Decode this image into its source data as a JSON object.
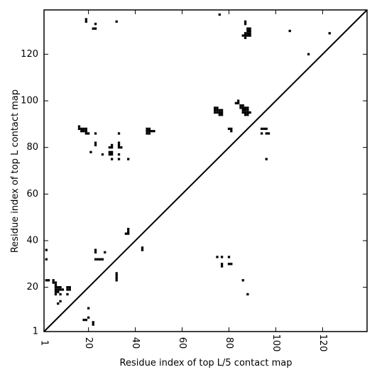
{
  "chart_data": {
    "type": "heatmap",
    "title": "",
    "xlabel": "Residue index of top L/5 contact map",
    "ylabel": "Residue index of top L contact map",
    "xlim": [
      1,
      139
    ],
    "ylim": [
      1,
      139
    ],
    "xticks": [
      1,
      20,
      40,
      60,
      80,
      100,
      120
    ],
    "yticks": [
      1,
      20,
      40,
      60,
      80,
      100,
      120
    ],
    "diagonal": true,
    "cell_color": "#000000",
    "upper_contacts": [
      [
        76,
        137
      ],
      [
        19,
        134
      ],
      [
        19,
        135
      ],
      [
        23,
        133
      ],
      [
        22,
        131
      ],
      [
        23,
        131
      ],
      [
        32,
        134
      ],
      [
        87,
        133
      ],
      [
        87,
        134
      ],
      [
        88,
        131
      ],
      [
        89,
        131
      ],
      [
        88,
        130
      ],
      [
        89,
        130
      ],
      [
        88,
        129
      ],
      [
        89,
        129
      ],
      [
        87,
        129
      ],
      [
        87,
        128
      ],
      [
        86,
        128
      ],
      [
        87,
        127
      ],
      [
        88,
        128
      ],
      [
        89,
        128
      ],
      [
        106,
        130
      ],
      [
        123,
        129
      ],
      [
        114,
        120
      ],
      [
        74,
        97
      ],
      [
        75,
        97
      ],
      [
        74,
        96
      ],
      [
        75,
        96
      ],
      [
        74,
        95
      ],
      [
        75,
        95
      ],
      [
        76,
        96
      ],
      [
        77,
        96
      ],
      [
        76,
        95
      ],
      [
        77,
        95
      ],
      [
        76,
        94
      ],
      [
        77,
        94
      ],
      [
        83,
        99
      ],
      [
        84,
        99
      ],
      [
        84,
        100
      ],
      [
        85,
        98
      ],
      [
        86,
        98
      ],
      [
        85,
        97
      ],
      [
        86,
        97
      ],
      [
        87,
        97
      ],
      [
        88,
        97
      ],
      [
        86,
        96
      ],
      [
        87,
        96
      ],
      [
        88,
        96
      ],
      [
        86,
        95
      ],
      [
        87,
        95
      ],
      [
        88,
        95
      ],
      [
        89,
        95
      ],
      [
        87,
        94
      ],
      [
        88,
        94
      ],
      [
        80,
        88
      ],
      [
        81,
        88
      ],
      [
        81,
        87
      ],
      [
        94,
        88
      ],
      [
        95,
        88
      ],
      [
        96,
        88
      ],
      [
        94,
        86
      ],
      [
        96,
        86
      ],
      [
        97,
        86
      ],
      [
        96,
        75
      ],
      [
        16,
        89
      ],
      [
        16,
        88
      ],
      [
        17,
        88
      ],
      [
        18,
        88
      ],
      [
        19,
        88
      ],
      [
        17,
        87
      ],
      [
        18,
        87
      ],
      [
        19,
        87
      ],
      [
        19,
        86
      ],
      [
        20,
        86
      ],
      [
        23,
        86
      ],
      [
        23,
        82
      ],
      [
        23,
        81
      ],
      [
        21,
        78
      ],
      [
        26,
        77
      ],
      [
        29,
        80
      ],
      [
        30,
        80
      ],
      [
        30,
        81
      ],
      [
        29,
        78
      ],
      [
        30,
        78
      ],
      [
        30,
        77
      ],
      [
        29,
        77
      ],
      [
        30,
        75
      ],
      [
        33,
        86
      ],
      [
        33,
        82
      ],
      [
        33,
        81
      ],
      [
        34,
        80
      ],
      [
        33,
        80
      ],
      [
        33,
        77
      ],
      [
        33,
        75
      ],
      [
        37,
        75
      ],
      [
        45,
        88
      ],
      [
        46,
        88
      ],
      [
        47,
        87
      ],
      [
        48,
        87
      ],
      [
        45,
        87
      ],
      [
        46,
        87
      ],
      [
        45,
        86
      ],
      [
        46,
        86
      ]
    ],
    "lower_contacts": [
      [
        37,
        45
      ],
      [
        37,
        44
      ],
      [
        36,
        43
      ],
      [
        37,
        43
      ],
      [
        43,
        37
      ],
      [
        43,
        36
      ],
      [
        2,
        36
      ],
      [
        2,
        32
      ],
      [
        23,
        36
      ],
      [
        23,
        35
      ],
      [
        27,
        35
      ],
      [
        23,
        32
      ],
      [
        24,
        32
      ],
      [
        25,
        32
      ],
      [
        26,
        32
      ],
      [
        32,
        26
      ],
      [
        32,
        25
      ],
      [
        32,
        24
      ],
      [
        32,
        23
      ],
      [
        2,
        23
      ],
      [
        3,
        23
      ],
      [
        5,
        23
      ],
      [
        5,
        22
      ],
      [
        6,
        22
      ],
      [
        6,
        21
      ],
      [
        6,
        20
      ],
      [
        7,
        20
      ],
      [
        8,
        20
      ],
      [
        11,
        20
      ],
      [
        12,
        20
      ],
      [
        6,
        19
      ],
      [
        7,
        19
      ],
      [
        8,
        19
      ],
      [
        11,
        19
      ],
      [
        12,
        19
      ],
      [
        6,
        18
      ],
      [
        7,
        18
      ],
      [
        6,
        17
      ],
      [
        8,
        17
      ],
      [
        9,
        19
      ],
      [
        11,
        17
      ],
      [
        8,
        14
      ],
      [
        7,
        13
      ],
      [
        20,
        11
      ],
      [
        20,
        7
      ],
      [
        18,
        6
      ],
      [
        19,
        6
      ],
      [
        22,
        5
      ],
      [
        22,
        4
      ],
      [
        75,
        33
      ],
      [
        77,
        33
      ],
      [
        80,
        33
      ],
      [
        77,
        30
      ],
      [
        77,
        29
      ],
      [
        80,
        30
      ],
      [
        81,
        30
      ],
      [
        86,
        23
      ],
      [
        88,
        17
      ]
    ]
  }
}
